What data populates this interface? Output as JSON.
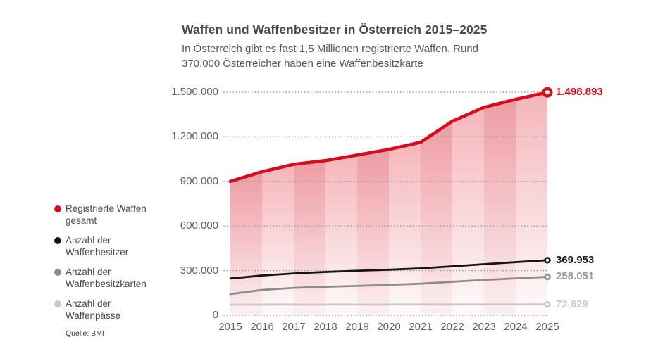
{
  "header": {
    "title": "Waffen und Waffenbesitzer in Österreich 2015–2025",
    "subtitle_line1": "In Österreich gibt es fast 1,5 Millionen registrierte Waffen. Rund",
    "subtitle_line2": "370.000 Österreicher haben eine Waffenbesitzkarte"
  },
  "legend": {
    "items": [
      {
        "line1": "Registrierte Waffen",
        "line2": "gesamt",
        "color": "#d40d1f"
      },
      {
        "line1": "Anzahl der",
        "line2": "Waffenbesitzer",
        "color": "#141414"
      },
      {
        "line1": "Anzahl der",
        "line2": "Waffenbesitzkarten",
        "color": "#8d8d8d"
      },
      {
        "line1": "Anzahl der",
        "line2": "Waffenpässe",
        "color": "#c9c9c9"
      }
    ],
    "source": "Quelle: BMI"
  },
  "chart_data": {
    "type": "area",
    "title": "Waffen und Waffenbesitzer in Österreich 2015–2025",
    "subtitle": "In Österreich gibt es fast 1,5 Millionen registrierte Waffen. Rund 370.000 Österreicher haben eine Waffenbesitzkarte",
    "x": [
      2015,
      2016,
      2017,
      2018,
      2019,
      2020,
      2021,
      2022,
      2023,
      2024,
      2025
    ],
    "series": [
      {
        "name": "Registrierte Waffen gesamt",
        "color": "#d40d1f",
        "label_color": "#d40d1f",
        "values": [
          900000,
          965000,
          1015000,
          1040000,
          1077000,
          1115000,
          1163000,
          1305000,
          1398000,
          1452000,
          1498893
        ],
        "end_label": "1.498.893"
      },
      {
        "name": "Anzahl der Waffenbesitzer",
        "color": "#141414",
        "label_color": "#1c1c1c",
        "values": [
          247000,
          267000,
          281000,
          291000,
          299000,
          306000,
          315000,
          329000,
          343000,
          357000,
          369953
        ],
        "end_label": "369.953"
      },
      {
        "name": "Anzahl der Waffenbesitzkarten",
        "color": "#8d8d8d",
        "label_color": "#9b9b9b",
        "values": [
          142000,
          170000,
          184000,
          191000,
          197000,
          204000,
          212000,
          225000,
          237000,
          248000,
          258051
        ],
        "end_label": "258.051"
      },
      {
        "name": "Anzahl der Waffenpässe",
        "color": "#c9c9c9",
        "label_color": "#cbcbcb",
        "values": [
          71000,
          71200,
          71400,
          71500,
          71600,
          71700,
          71800,
          71900,
          72100,
          72300,
          72629
        ],
        "end_label": "72.629"
      }
    ],
    "y_ticks": [
      {
        "value": 0,
        "label": "0"
      },
      {
        "value": 300000,
        "label": "300.000"
      },
      {
        "value": 600000,
        "label": "600.000"
      },
      {
        "value": 900000,
        "label": "900.000"
      },
      {
        "value": 1200000,
        "label": "1.200.000"
      },
      {
        "value": 1500000,
        "label": "1.500.000"
      }
    ],
    "ylim": [
      0,
      1500000
    ],
    "grid": "horizontal-dotted",
    "legend_position": "left",
    "area_bands": {
      "dark_top": "#ee9ba3",
      "dark_bottom": "#fcf0f1",
      "light_top": "#f4b5bb",
      "light_bottom": "#fefafa"
    },
    "source": "Quelle: BMI"
  }
}
